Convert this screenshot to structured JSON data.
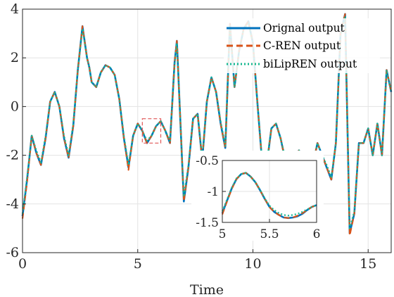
{
  "chart_data": {
    "type": "line",
    "title": "",
    "xlabel": "Time",
    "ylabel": "",
    "xlim": [
      0,
      16
    ],
    "ylim": [
      -6,
      4
    ],
    "xticks": [
      0,
      5,
      10,
      15
    ],
    "yticks": [
      -6,
      -4,
      -2,
      0,
      2,
      4
    ],
    "grid": true,
    "legend": {
      "position": "top-right"
    },
    "colors": {
      "orignal": "#0072BD",
      "cren": "#D95319",
      "bilip": "#17B890",
      "zoom_box": "#E05555"
    },
    "x": [
      0.0,
      0.2,
      0.4,
      0.6,
      0.8,
      1.0,
      1.2,
      1.4,
      1.6,
      1.8,
      2.0,
      2.2,
      2.4,
      2.6,
      2.8,
      2.9,
      3.0,
      3.2,
      3.4,
      3.6,
      3.8,
      4.0,
      4.2,
      4.4,
      4.6,
      4.8,
      5.0,
      5.2,
      5.4,
      5.6,
      5.8,
      6.0,
      6.2,
      6.4,
      6.6,
      6.7,
      6.8,
      7.0,
      7.2,
      7.4,
      7.6,
      7.8,
      8.0,
      8.2,
      8.4,
      8.6,
      8.8,
      9.0,
      9.2,
      9.4,
      9.6,
      9.8,
      10.0,
      10.2,
      10.4,
      10.6,
      10.8,
      11.0,
      11.2,
      11.4,
      11.6,
      11.8,
      12.0,
      12.2,
      12.4,
      12.6,
      12.8,
      13.0,
      13.2,
      13.4,
      13.6,
      13.8,
      14.0,
      14.2,
      14.4,
      14.6,
      14.8,
      15.0,
      15.2,
      15.4,
      15.6,
      15.8,
      16.0
    ],
    "series": [
      {
        "name": "Orignal output",
        "values": [
          -4.5,
          -3.0,
          -1.2,
          -1.9,
          -2.4,
          -1.3,
          0.2,
          0.6,
          0.0,
          -1.3,
          -2.1,
          -0.8,
          1.5,
          3.3,
          2.0,
          1.6,
          1.0,
          0.8,
          1.4,
          1.7,
          1.6,
          1.3,
          0.3,
          -1.3,
          -2.5,
          -1.2,
          -0.7,
          -1.0,
          -1.5,
          -1.2,
          -0.8,
          -0.6,
          -1.0,
          -1.5,
          1.8,
          2.7,
          0.5,
          -3.9,
          -2.5,
          -0.5,
          -0.3,
          -2.2,
          0.2,
          1.2,
          0.6,
          -0.7,
          -1.7,
          3.4,
          0.8,
          2.3,
          3.2,
          3.5,
          2.6,
          0.1,
          -2.3,
          -2.4,
          -0.9,
          -0.7,
          -1.3,
          -2.2,
          -2.6,
          -2.0,
          -1.8,
          -2.2,
          -2.2,
          -2.4,
          -1.5,
          -2.0,
          -2.5,
          -3.0,
          -1.5,
          3.0,
          3.8,
          -5.2,
          -4.4,
          -1.5,
          -1.5,
          -0.9,
          -2.0,
          -0.7,
          -2.0,
          1.5,
          0.6
        ]
      },
      {
        "name": "C-REN output",
        "values": [
          -4.6,
          -3.1,
          -1.2,
          -1.9,
          -2.4,
          -1.3,
          0.2,
          0.6,
          0.0,
          -1.3,
          -2.1,
          -0.8,
          1.5,
          3.3,
          2.0,
          1.6,
          1.0,
          0.8,
          1.4,
          1.7,
          1.6,
          1.3,
          0.3,
          -1.3,
          -2.6,
          -1.2,
          -0.7,
          -1.0,
          -1.5,
          -1.2,
          -0.8,
          -0.6,
          -1.0,
          -1.5,
          1.8,
          2.7,
          0.5,
          -3.9,
          -2.5,
          -0.5,
          -0.3,
          -2.2,
          0.2,
          1.2,
          0.6,
          -0.7,
          -1.7,
          3.4,
          0.8,
          2.3,
          3.2,
          3.5,
          2.6,
          0.1,
          -2.3,
          -2.4,
          -0.9,
          -0.7,
          -1.3,
          -2.2,
          -2.6,
          -2.0,
          -1.8,
          -2.2,
          -2.2,
          -2.4,
          -1.5,
          -2.0,
          -2.5,
          -3.0,
          -1.5,
          3.0,
          3.8,
          -5.3,
          -4.4,
          -1.5,
          -1.5,
          -0.9,
          -2.0,
          -0.7,
          -2.0,
          1.5,
          0.6
        ]
      },
      {
        "name": "biLipREN output",
        "values": [
          -4.4,
          -2.9,
          -1.2,
          -1.8,
          -2.3,
          -1.2,
          0.2,
          0.6,
          0.0,
          -1.2,
          -2.0,
          -0.7,
          1.5,
          3.2,
          2.0,
          1.6,
          1.0,
          0.8,
          1.4,
          1.7,
          1.6,
          1.3,
          0.3,
          -1.2,
          -2.4,
          -1.2,
          -0.7,
          -1.0,
          -1.4,
          -1.2,
          -0.8,
          -0.6,
          -1.0,
          -1.4,
          1.7,
          2.6,
          0.5,
          -3.7,
          -2.4,
          -0.5,
          -0.3,
          -2.1,
          0.2,
          1.2,
          0.6,
          -0.6,
          -1.6,
          3.3,
          0.8,
          2.3,
          3.2,
          3.4,
          2.6,
          0.1,
          -2.2,
          -2.3,
          -0.9,
          -0.7,
          -1.3,
          -2.1,
          -2.5,
          -2.0,
          -1.8,
          -2.2,
          -2.2,
          -2.3,
          -1.5,
          -2.0,
          -2.4,
          -2.9,
          -1.5,
          2.9,
          3.7,
          -5.0,
          -4.3,
          -1.5,
          -1.5,
          -0.9,
          -2.0,
          -0.7,
          -2.0,
          1.5,
          0.6
        ]
      }
    ],
    "inset": {
      "xlim": [
        5,
        6
      ],
      "ylim": [
        -1.5,
        -0.5
      ],
      "xticks": [
        5,
        5.5,
        6
      ],
      "xtick_labels": [
        "5",
        "5.5",
        "6"
      ],
      "yticks": [
        -1.5,
        -1,
        -0.5
      ],
      "x": [
        5.0,
        5.05,
        5.1,
        5.15,
        5.2,
        5.25,
        5.3,
        5.35,
        5.4,
        5.45,
        5.5,
        5.55,
        5.6,
        5.65,
        5.7,
        5.75,
        5.8,
        5.85,
        5.9,
        5.95,
        6.0
      ],
      "series": [
        {
          "name": "Orignal output",
          "values": [
            -1.35,
            -1.15,
            -0.95,
            -0.8,
            -0.72,
            -0.7,
            -0.76,
            -0.85,
            -0.98,
            -1.12,
            -1.25,
            -1.33,
            -1.38,
            -1.42,
            -1.43,
            -1.42,
            -1.4,
            -1.36,
            -1.3,
            -1.25,
            -1.22
          ]
        },
        {
          "name": "C-REN output",
          "values": [
            -1.37,
            -1.16,
            -0.96,
            -0.8,
            -0.72,
            -0.7,
            -0.76,
            -0.85,
            -0.98,
            -1.12,
            -1.25,
            -1.33,
            -1.38,
            -1.42,
            -1.43,
            -1.42,
            -1.39,
            -1.35,
            -1.3,
            -1.25,
            -1.22
          ]
        },
        {
          "name": "biLipREN output",
          "values": [
            -1.32,
            -1.13,
            -0.94,
            -0.79,
            -0.72,
            -0.7,
            -0.76,
            -0.85,
            -0.97,
            -1.11,
            -1.23,
            -1.3,
            -1.35,
            -1.38,
            -1.39,
            -1.38,
            -1.36,
            -1.33,
            -1.29,
            -1.25,
            -1.22
          ]
        }
      ]
    },
    "zoom_box": {
      "x": [
        5.2,
        6.0
      ],
      "y": [
        -1.5,
        -0.5
      ]
    }
  }
}
